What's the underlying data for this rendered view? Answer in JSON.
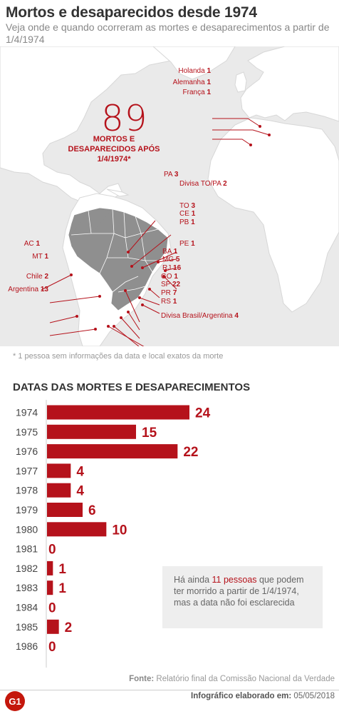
{
  "header": {
    "title": "Mortos e desaparecidos desde 1974",
    "subtitle": "Veja onde e quando ocorreram as mortes e desaparecimentos a partir de 1/4/1974"
  },
  "map": {
    "total": "89",
    "total_caption": "MORTOS E DESAPARECIDOS APÓS 1/4/1974*",
    "labels": [
      {
        "name": "Holanda",
        "count": "1"
      },
      {
        "name": "Alemanha",
        "count": "1"
      },
      {
        "name": "França",
        "count": "1"
      },
      {
        "name": "PA",
        "count": "3"
      },
      {
        "name": "Divisa TO/PA",
        "count": "2"
      },
      {
        "name": "TO",
        "count": "3"
      },
      {
        "name": "CE",
        "count": "1"
      },
      {
        "name": "PB",
        "count": "1"
      },
      {
        "name": "PE",
        "count": "1"
      },
      {
        "name": "BA",
        "count": "1"
      },
      {
        "name": "MG",
        "count": "5"
      },
      {
        "name": "RJ",
        "count": "16"
      },
      {
        "name": "GO",
        "count": "1"
      },
      {
        "name": "SP",
        "count": "22"
      },
      {
        "name": "PR",
        "count": "7"
      },
      {
        "name": "RS",
        "count": "1"
      },
      {
        "name": "Divisa Brasil/Argentina",
        "count": "4"
      },
      {
        "name": "AC",
        "count": "1"
      },
      {
        "name": "MT",
        "count": "1"
      },
      {
        "name": "Chile",
        "count": "2"
      },
      {
        "name": "Argentina",
        "count": "13"
      }
    ],
    "footnote": "* 1 pessoa sem informações da data e local exatos da morte"
  },
  "chart_data": {
    "type": "bar",
    "orientation": "horizontal",
    "title": "DATAS DAS MORTES E DESAPARECIMENTOS",
    "categories": [
      "1974",
      "1975",
      "1976",
      "1977",
      "1978",
      "1979",
      "1980",
      "1981",
      "1982",
      "1983",
      "1984",
      "1985",
      "1986"
    ],
    "values": [
      24,
      15,
      22,
      4,
      4,
      6,
      10,
      0,
      1,
      1,
      0,
      2,
      0
    ],
    "color": "#b5121b"
  },
  "note": {
    "before": "Há ainda ",
    "highlight": "11 pessoas",
    "after": " que podem ter morrido a partir de 1/4/1974, mas a data não foi esclarecida"
  },
  "footer": {
    "source_label": "Fonte:",
    "source_text": " Relatório final da Comissão Nacional da Verdade",
    "credit_label": "Infográfico elaborado em:",
    "credit_date": " 05/05/2018",
    "logo_text": "G1"
  },
  "colors": {
    "accent": "#b5121b",
    "map_background": "#eaeaea",
    "brazil": "#8f8f8f"
  }
}
